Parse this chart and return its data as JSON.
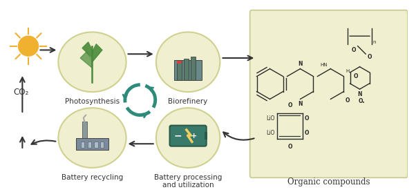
{
  "bg_color": "#ffffff",
  "panel_bg": "#f0f0d0",
  "panel_border": "#c8c890",
  "circle_fill": "#f0f0d0",
  "circle_edge": "#d0d090",
  "arrow_color": "#333333",
  "text_color": "#333333",
  "teal_color": "#2e8b7a",
  "dark_teal": "#1a6b5a",
  "plant_green": "#4a8a3a",
  "sun_color": "#f0b030",
  "battery_bg": "#3a7a6a",
  "factory_color": "#7a8a8a",
  "label_photosynthesis": "Photosynthesis",
  "label_biorefinery": "Biorefinery",
  "label_battery_recycling": "Battery recycling",
  "label_battery_processing": "Battery processing\nand utilization",
  "label_organic": "Organic compounds",
  "label_co2": "CO₂",
  "figsize": [
    6.02,
    2.78
  ],
  "dpi": 100
}
